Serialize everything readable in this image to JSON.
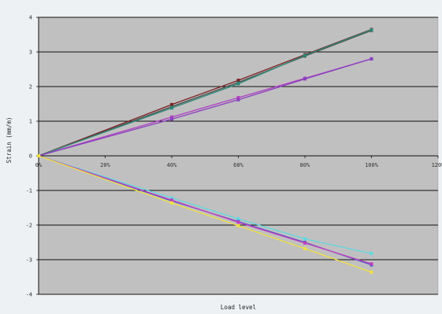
{
  "chart_data": {
    "type": "line",
    "title": "",
    "xlabel": "Load level",
    "ylabel": "Strain (mm/m)",
    "xlim": [
      0,
      120
    ],
    "ylim": [
      -4,
      4
    ],
    "x_ticks": [
      "0%",
      "20%",
      "40%",
      "60%",
      "80%",
      "100%",
      "120%"
    ],
    "y_ticks": [
      "4",
      "3",
      "2",
      "1",
      "0",
      "-1",
      "-2",
      "-3",
      "-4"
    ],
    "grid": "horizontal",
    "legend": "none",
    "plot_background": "#c0c0c0",
    "series": [
      {
        "color": "#7a1f1f",
        "x": [
          0,
          40,
          60,
          80,
          100
        ],
        "y": [
          0,
          1.48,
          2.18,
          2.92,
          3.65
        ]
      },
      {
        "color": "#4b4b4b",
        "x": [
          0,
          40,
          60,
          80,
          100
        ],
        "y": [
          0,
          1.42,
          2.12,
          2.88,
          3.62
        ]
      },
      {
        "color": "#2e8b7a",
        "x": [
          0,
          40,
          60,
          80,
          100
        ],
        "y": [
          0,
          1.38,
          2.08,
          2.9,
          3.64
        ]
      },
      {
        "color": "#b040c0",
        "x": [
          0,
          40,
          60,
          80,
          100
        ],
        "y": [
          0,
          1.12,
          1.68,
          2.24,
          2.8
        ]
      },
      {
        "color": "#8a3fbf",
        "x": [
          0,
          40,
          60,
          80,
          100
        ],
        "y": [
          0,
          1.06,
          1.62,
          2.22,
          2.8
        ]
      },
      {
        "color": "#5fd8e0",
        "x": [
          0,
          40,
          60,
          80,
          100
        ],
        "y": [
          0,
          -1.22,
          -1.82,
          -2.4,
          -2.82
        ]
      },
      {
        "color": "#5050c8",
        "x": [
          0,
          40,
          60,
          80,
          100
        ],
        "y": [
          0,
          -1.3,
          -1.9,
          -2.5,
          -3.15
        ]
      },
      {
        "color": "#c040c0",
        "x": [
          0,
          40,
          60,
          80,
          100
        ],
        "y": [
          0,
          -1.28,
          -1.92,
          -2.52,
          -3.12
        ]
      },
      {
        "color": "#f0e040",
        "x": [
          0,
          40,
          60,
          80,
          100
        ],
        "y": [
          0,
          -1.36,
          -2.02,
          -2.68,
          -3.36
        ]
      }
    ]
  }
}
